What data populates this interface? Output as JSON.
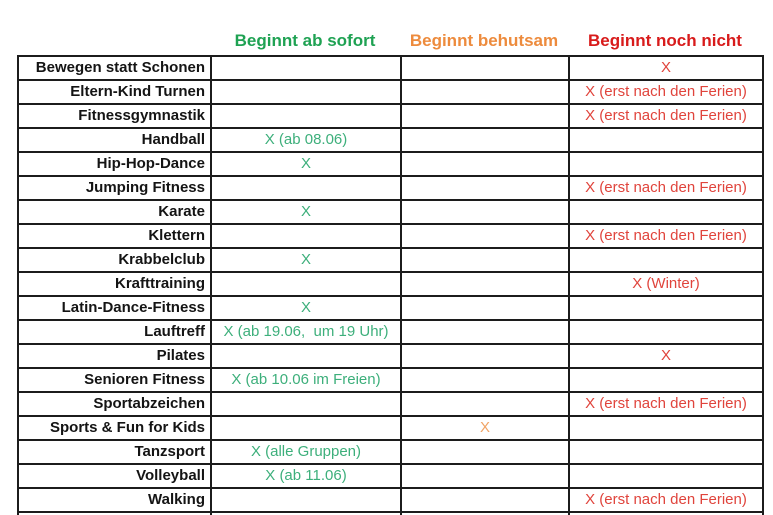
{
  "colors": {
    "green-header": "#1fa253",
    "green-value": "#3daf7b",
    "orange-header": "#ed8b3d",
    "orange-value": "#f1a466",
    "red-header": "#d81b1b",
    "red-value": "#e0443c",
    "ink": "#141414",
    "border": "#1c1c1c",
    "bg": "#ffffff"
  },
  "headers": [
    {
      "label": "Beginnt ab sofort",
      "color": "#1fa253"
    },
    {
      "label": "Beginnt behutsam",
      "color": "#ed8b3d"
    },
    {
      "label": "Beginnt noch nicht",
      "color": "#d81b1b"
    }
  ],
  "rows": [
    {
      "label": "Bewegen statt Schonen",
      "sofort": "",
      "behutsam": "",
      "nochnicht": "X"
    },
    {
      "label": "Eltern-Kind Turnen",
      "sofort": "",
      "behutsam": "",
      "nochnicht": "X (erst nach den Ferien)"
    },
    {
      "label": "Fitnessgymnastik",
      "sofort": "",
      "behutsam": "",
      "nochnicht": "X (erst nach den Ferien)"
    },
    {
      "label": "Handball",
      "sofort": "X (ab 08.06)",
      "behutsam": "",
      "nochnicht": ""
    },
    {
      "label": "Hip-Hop-Dance",
      "sofort": "X",
      "behutsam": "",
      "nochnicht": ""
    },
    {
      "label": "Jumping Fitness",
      "sofort": "",
      "behutsam": "",
      "nochnicht": "X (erst nach den Ferien)"
    },
    {
      "label": "Karate",
      "sofort": "X",
      "behutsam": "",
      "nochnicht": ""
    },
    {
      "label": "Klettern",
      "sofort": "",
      "behutsam": "",
      "nochnicht": "X (erst nach den Ferien)"
    },
    {
      "label": "Krabbelclub",
      "sofort": "X",
      "behutsam": "",
      "nochnicht": ""
    },
    {
      "label": "Krafttraining",
      "sofort": "",
      "behutsam": "",
      "nochnicht": "X (Winter)"
    },
    {
      "label": "Latin-Dance-Fitness",
      "sofort": "X",
      "behutsam": "",
      "nochnicht": ""
    },
    {
      "label": "Lauftreff",
      "sofort": "X (ab 19.06,  um 19 Uhr)",
      "behutsam": "",
      "nochnicht": ""
    },
    {
      "label": "Pilates",
      "sofort": "",
      "behutsam": "",
      "nochnicht": "X"
    },
    {
      "label": "Senioren Fitness",
      "sofort": "X (ab 10.06 im Freien)",
      "behutsam": "",
      "nochnicht": ""
    },
    {
      "label": "Sportabzeichen",
      "sofort": "",
      "behutsam": "",
      "nochnicht": "X (erst nach den Ferien)"
    },
    {
      "label": "Sports & Fun for Kids",
      "sofort": "",
      "behutsam": "X",
      "nochnicht": ""
    },
    {
      "label": "Tanzsport",
      "sofort": "X (alle Gruppen)",
      "behutsam": "",
      "nochnicht": ""
    },
    {
      "label": "Volleyball",
      "sofort": "X (ab 11.06)",
      "behutsam": "",
      "nochnicht": ""
    },
    {
      "label": "Walking",
      "sofort": "",
      "behutsam": "",
      "nochnicht": "X (erst nach den Ferien)"
    }
  ]
}
